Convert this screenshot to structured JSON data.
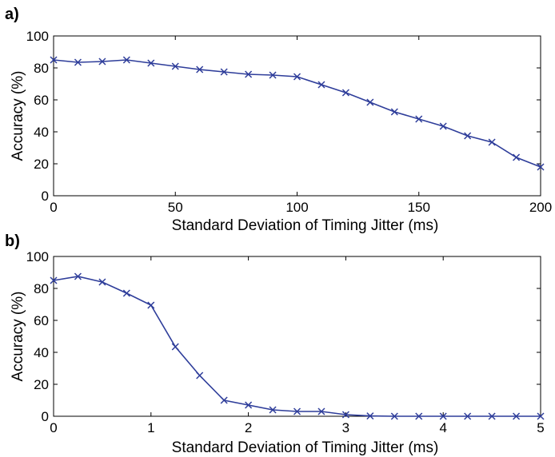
{
  "chart_data": [
    {
      "type": "line",
      "panel_label": "a)",
      "xlabel": "Standard Deviation of Timing Jitter (ms)",
      "ylabel": "Accuracy (%)",
      "xlim": [
        0,
        200
      ],
      "ylim": [
        0,
        100
      ],
      "xticks": [
        0,
        50,
        100,
        150,
        200
      ],
      "yticks": [
        0,
        20,
        40,
        60,
        80,
        100
      ],
      "series": [
        {
          "marker": "x",
          "x": [
            0,
            10,
            20,
            30,
            40,
            50,
            60,
            70,
            80,
            90,
            100,
            110,
            120,
            130,
            140,
            150,
            160,
            170,
            180,
            190,
            200
          ],
          "y": [
            85,
            83.5,
            84,
            85,
            83,
            81,
            79,
            77.5,
            76,
            75.5,
            74.5,
            69.5,
            64.5,
            58.5,
            52.5,
            48,
            43.5,
            37.5,
            33.5,
            24,
            18
          ]
        }
      ],
      "color": "#2e3d9a",
      "grid": false
    },
    {
      "type": "line",
      "panel_label": "b)",
      "xlabel": "Standard Deviation of Timing Jitter (ms)",
      "ylabel": "Accuracy (%)",
      "xlim": [
        0,
        5
      ],
      "ylim": [
        0,
        100
      ],
      "xticks": [
        0,
        1,
        2,
        3,
        4,
        5
      ],
      "yticks": [
        0,
        20,
        40,
        60,
        80,
        100
      ],
      "series": [
        {
          "marker": "x",
          "x": [
            0,
            0.25,
            0.5,
            0.75,
            1,
            1.25,
            1.5,
            1.75,
            2,
            2.25,
            2.5,
            2.75,
            3,
            3.25,
            3.5,
            3.75,
            4,
            4.25,
            4.5,
            4.75,
            5
          ],
          "y": [
            85,
            87.5,
            84,
            77,
            69.5,
            43.5,
            25.5,
            10,
            7,
            4,
            3,
            3,
            1,
            0.2,
            0,
            0,
            0,
            0,
            0,
            0,
            0
          ]
        }
      ],
      "color": "#2e3d9a",
      "grid": false
    }
  ]
}
